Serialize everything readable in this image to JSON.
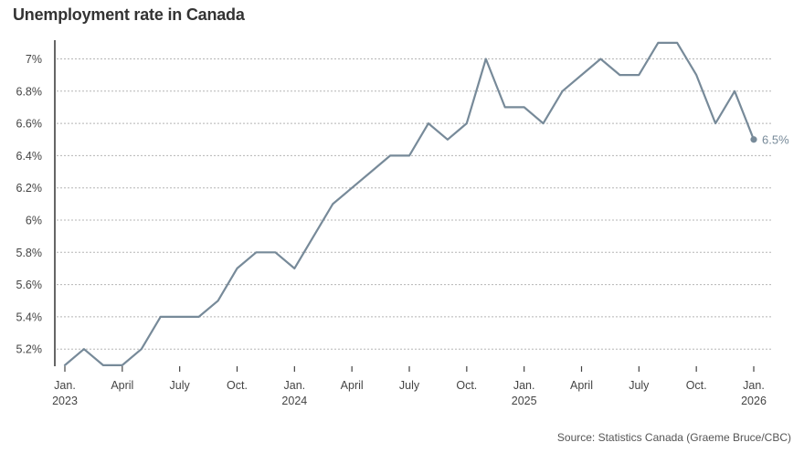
{
  "chart_data": {
    "type": "line",
    "title": "Unemployment rate in Canada",
    "source": "Source: Statistics Canada (Graeme Bruce/CBC)",
    "ylim": [
      5.1,
      7.1
    ],
    "y_ticks": [
      5.2,
      5.4,
      5.6,
      5.8,
      6.0,
      6.2,
      6.4,
      6.6,
      6.8,
      7.0
    ],
    "y_tick_labels": [
      "5.2%",
      "5.4%",
      "5.6%",
      "5.8%",
      "6%",
      "6.2%",
      "6.4%",
      "6.6%",
      "6.8%",
      "7%"
    ],
    "x_ticks": [
      {
        "date": "2023-01",
        "label": "Jan.",
        "year": "2023"
      },
      {
        "date": "2023-04",
        "label": "April",
        "year": ""
      },
      {
        "date": "2023-07",
        "label": "July",
        "year": ""
      },
      {
        "date": "2023-10",
        "label": "Oct.",
        "year": ""
      },
      {
        "date": "2024-01",
        "label": "Jan.",
        "year": "2024"
      },
      {
        "date": "2024-04",
        "label": "April",
        "year": ""
      },
      {
        "date": "2024-07",
        "label": "July",
        "year": ""
      },
      {
        "date": "2024-10",
        "label": "Oct.",
        "year": ""
      },
      {
        "date": "2025-01",
        "label": "Jan.",
        "year": "2025"
      },
      {
        "date": "2025-04",
        "label": "April",
        "year": ""
      },
      {
        "date": "2025-07",
        "label": "July",
        "year": ""
      },
      {
        "date": "2025-10",
        "label": "Oct.",
        "year": ""
      },
      {
        "date": "2026-01",
        "label": "Jan.",
        "year": "2026"
      }
    ],
    "grid": "horizontal dashed",
    "series": [
      {
        "color": "#778a99",
        "x": [
          "2023-01",
          "2023-02",
          "2023-03",
          "2023-04",
          "2023-05",
          "2023-06",
          "2023-07",
          "2023-08",
          "2023-09",
          "2023-10",
          "2023-11",
          "2023-12",
          "2024-01",
          "2024-02",
          "2024-03",
          "2024-04",
          "2024-05",
          "2024-06",
          "2024-07",
          "2024-08",
          "2024-09",
          "2024-10",
          "2024-11",
          "2024-12",
          "2025-01",
          "2025-02",
          "2025-03",
          "2025-04",
          "2025-05",
          "2025-06",
          "2025-07",
          "2025-08",
          "2025-09",
          "2025-10",
          "2025-11",
          "2025-12",
          "2026-01"
        ],
        "values": [
          5.1,
          5.2,
          5.1,
          5.1,
          5.2,
          5.4,
          5.4,
          5.4,
          5.5,
          5.7,
          5.8,
          5.8,
          5.7,
          5.9,
          6.1,
          6.2,
          6.3,
          6.4,
          6.4,
          6.6,
          6.5,
          6.6,
          7.0,
          6.7,
          6.7,
          6.6,
          6.8,
          6.9,
          7.0,
          6.9,
          6.9,
          7.1,
          7.1,
          6.9,
          6.6,
          6.8,
          6.5
        ]
      }
    ],
    "end_label": "6.5%"
  }
}
